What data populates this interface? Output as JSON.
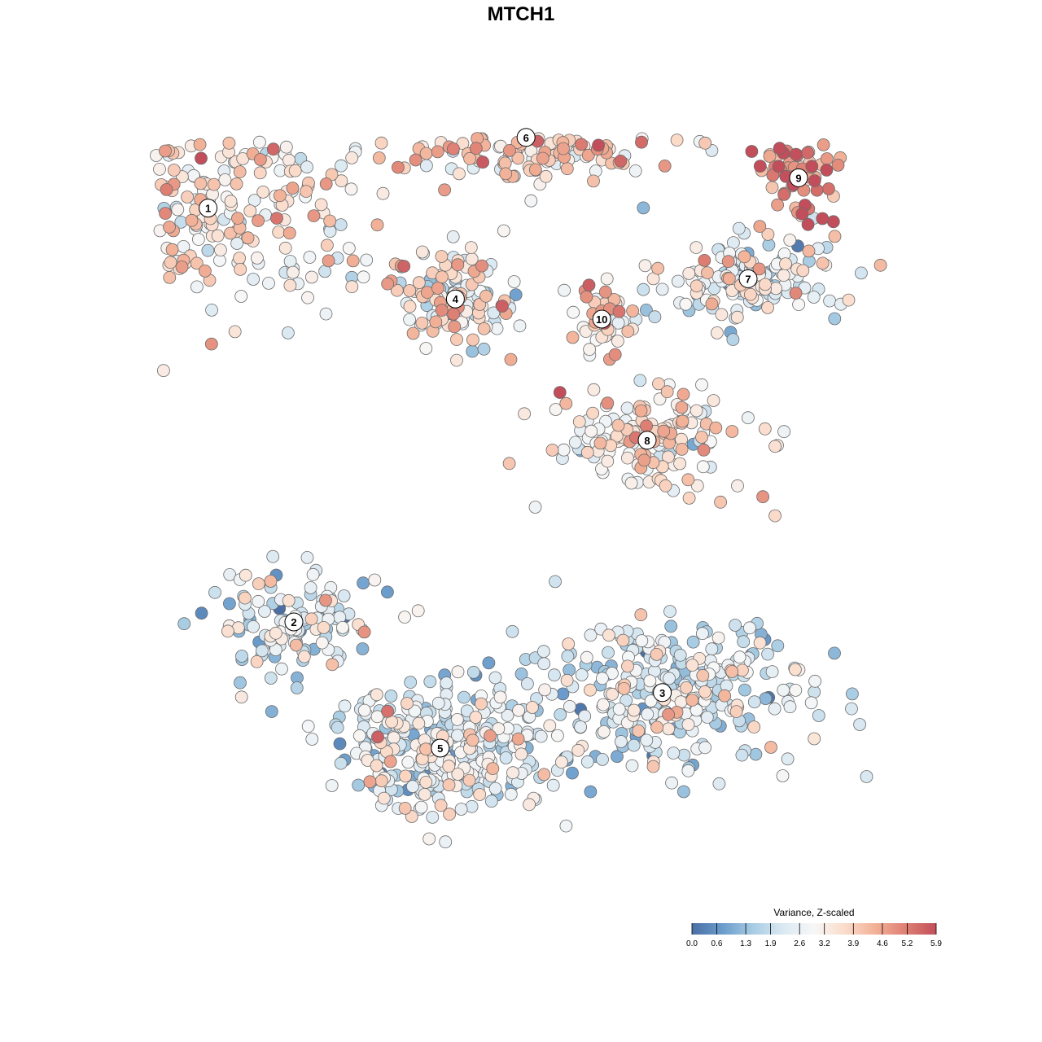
{
  "chart_data": {
    "type": "scatter",
    "title": "MTCH1",
    "xlabel": "",
    "ylabel": "",
    "grid": false,
    "legend_position": "bottom-right",
    "colorbar": {
      "title": "Variance, Z-scaled",
      "ticks": [
        "0.0",
        "0.6",
        "1.3",
        "1.9",
        "2.6",
        "3.2",
        "3.9",
        "4.6",
        "5.2",
        "5.9"
      ],
      "min": 0.0,
      "max": 5.9,
      "colors": [
        "#4a6fa5",
        "#6a9ccc",
        "#a7cce3",
        "#dbe9f2",
        "#f7f7f7",
        "#fbdccb",
        "#f2b197",
        "#de7f73",
        "#c24e5b"
      ]
    },
    "clusters": [
      {
        "label": "1",
        "x": -6.2,
        "y": 6.2,
        "spread": [
          2.6,
          1.8
        ],
        "n": 260,
        "mean_value": 3.4
      },
      {
        "label": "2",
        "x": -4.5,
        "y": -2.0,
        "spread": [
          1.6,
          0.9
        ],
        "n": 130,
        "mean_value": 2.2
      },
      {
        "label": "3",
        "x": 2.8,
        "y": -3.4,
        "spread": [
          2.6,
          1.4
        ],
        "n": 330,
        "mean_value": 2.3
      },
      {
        "label": "4",
        "x": -1.3,
        "y": 4.4,
        "spread": [
          1.1,
          0.9
        ],
        "n": 130,
        "mean_value": 3.1
      },
      {
        "label": "5",
        "x": -1.6,
        "y": -4.5,
        "spread": [
          2.0,
          1.1
        ],
        "n": 320,
        "mean_value": 2.4
      },
      {
        "label": "6",
        "x": 0.1,
        "y": 7.6,
        "spread": [
          2.6,
          0.8
        ],
        "n": 230,
        "mean_value": 3.6
      },
      {
        "label": "7",
        "x": 4.5,
        "y": 4.8,
        "spread": [
          1.6,
          0.8
        ],
        "n": 150,
        "mean_value": 2.7
      },
      {
        "label": "8",
        "x": 2.5,
        "y": 1.6,
        "spread": [
          1.8,
          0.9
        ],
        "n": 150,
        "mean_value": 3.4
      },
      {
        "label": "9",
        "x": 5.5,
        "y": 6.8,
        "spread": [
          0.8,
          0.7
        ],
        "n": 60,
        "mean_value": 4.9
      },
      {
        "label": "10",
        "x": 1.6,
        "y": 4.0,
        "spread": [
          0.5,
          0.6
        ],
        "n": 50,
        "mean_value": 3.7
      }
    ]
  }
}
